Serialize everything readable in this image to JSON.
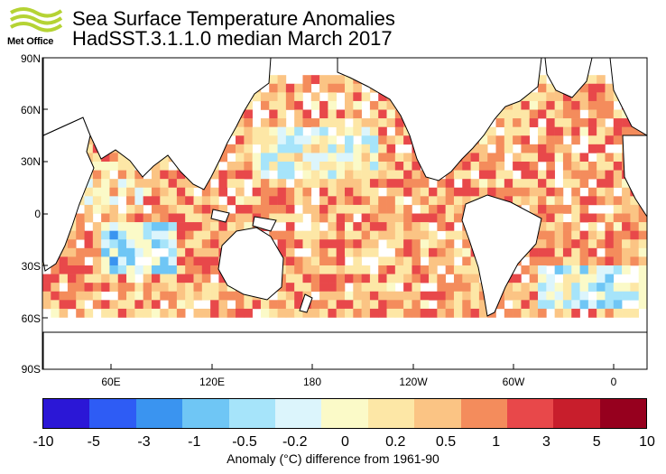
{
  "header": {
    "logo_text": "Met Office",
    "title_line1": "Sea Surface Temperature Anomalies",
    "title_line2": "HadSST.3.1.1.0 median March 2017"
  },
  "map": {
    "lat_labels": [
      "90N",
      "60N",
      "30N",
      "0",
      "30S",
      "60S",
      "90S"
    ],
    "lon_labels": [
      "60E",
      "120E",
      "180",
      "120W",
      "60W",
      "0"
    ],
    "land_color": "#ffffff",
    "missing_color": "#ffffff"
  },
  "colorbar": {
    "tick_labels": [
      "-10",
      "-5",
      "-3",
      "-1",
      "-0.5",
      "-0.2",
      "0",
      "0.2",
      "0.5",
      "1",
      "3",
      "5",
      "10"
    ],
    "colors": [
      "#2b17d6",
      "#2e5cf5",
      "#3a94f0",
      "#6fc6f5",
      "#a6e4fa",
      "#dcf5fc",
      "#fbfac8",
      "#fde7a6",
      "#fbc484",
      "#f48c5c",
      "#e8484a",
      "#c81e2c",
      "#96001e"
    ],
    "label": "Anomaly (°C) difference from 1961-90"
  }
}
